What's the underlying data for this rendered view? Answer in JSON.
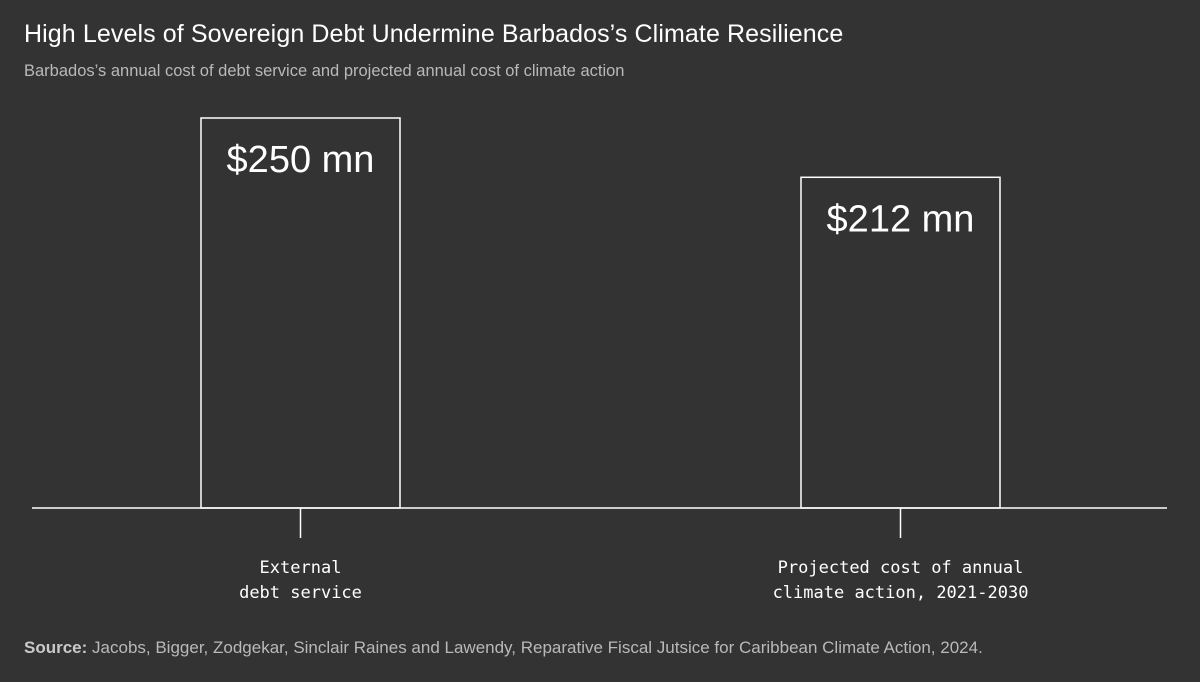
{
  "header": {
    "title": "High Levels of Sovereign Debt Undermine Barbados’s Climate Resilience",
    "subtitle": "Barbados’s annual cost of debt service and projected annual cost of climate action"
  },
  "footer": {
    "source_label": "Source:",
    "source_text": "Jacobs, Bigger, Zodgekar, Sinclair Raines and Lawendy, Reparative Fiscal Jutsice for Caribbean Climate Action, 2024."
  },
  "colors": {
    "background": "#333333",
    "bar_stroke": "#ffffff",
    "text": "#ffffff",
    "muted_text": "#b9b9b9"
  },
  "chart_data": {
    "type": "bar",
    "title": "High Levels of Sovereign Debt Undermine Barbados’s Climate Resilience",
    "subtitle": "Barbados’s annual cost of debt service and projected annual cost of climate action",
    "categories": [
      [
        "External",
        "debt service"
      ],
      [
        "Projected cost of annual",
        "climate action, 2021-2030"
      ]
    ],
    "values": [
      250,
      212
    ],
    "value_labels": [
      "$250 mn",
      "$212 mn"
    ],
    "unit": "mn",
    "ylim": [
      0,
      250
    ],
    "grid": false,
    "legend": "none"
  }
}
